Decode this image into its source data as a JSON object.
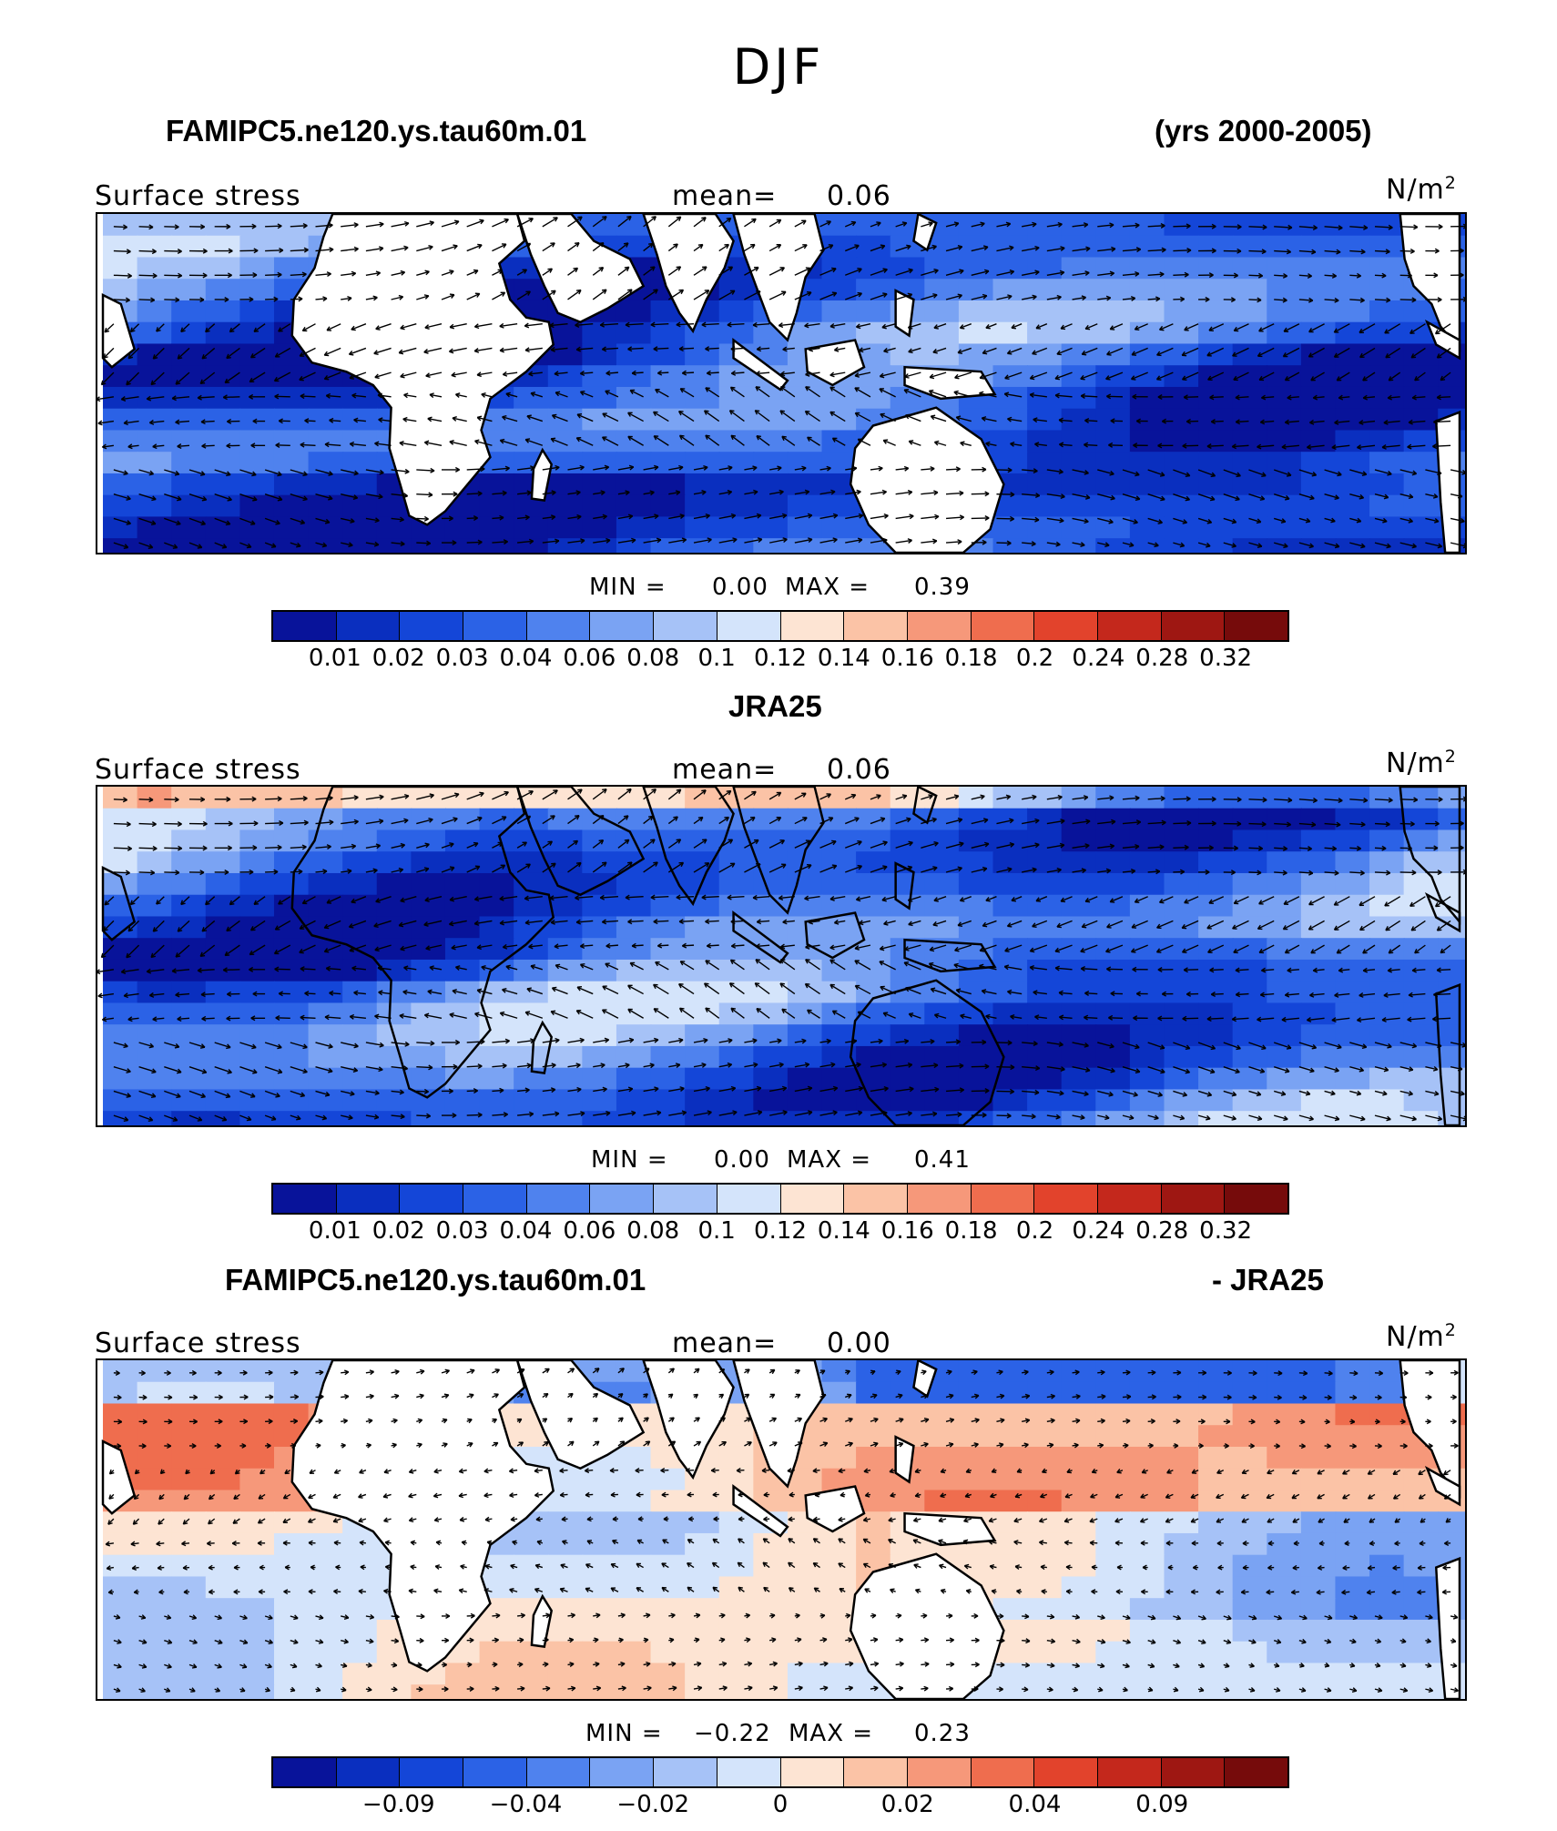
{
  "title": "DJF",
  "panels": [
    {
      "case_left": "FAMIPC5.ne120.ys.tau60m.01",
      "case_right": "(yrs 2000-2005)",
      "variable": "Surface stress",
      "mean_label": "mean=",
      "mean_value": "0.06",
      "units": "N/m",
      "units_sup": "2",
      "minmax_min_label": "MIN =",
      "min_value": "0.00",
      "minmax_max_label": "MAX =",
      "max_value": "0.39",
      "colorbar_ticks": [
        "0.01",
        "0.02",
        "0.03",
        "0.04",
        "0.06",
        "0.08",
        "0.1",
        "0.12",
        "0.14",
        "0.16",
        "0.18",
        "0.2",
        "0.24",
        "0.28",
        "0.32"
      ],
      "field": "model"
    },
    {
      "case_left": "JRA25",
      "case_right": "",
      "variable": "Surface stress",
      "mean_label": "mean=",
      "mean_value": "0.06",
      "units": "N/m",
      "units_sup": "2",
      "minmax_min_label": "MIN =",
      "min_value": "0.00",
      "minmax_max_label": "MAX =",
      "max_value": "0.41",
      "colorbar_ticks": [
        "0.01",
        "0.02",
        "0.03",
        "0.04",
        "0.06",
        "0.08",
        "0.1",
        "0.12",
        "0.14",
        "0.16",
        "0.18",
        "0.2",
        "0.24",
        "0.28",
        "0.32"
      ],
      "field": "obs"
    },
    {
      "case_left": "FAMIPC5.ne120.ys.tau60m.01",
      "case_right": "- JRA25",
      "variable": "Surface stress",
      "mean_label": "mean=",
      "mean_value": "0.00",
      "units": "N/m",
      "units_sup": "2",
      "minmax_min_label": "MIN =",
      "min_value": "−0.22",
      "minmax_max_label": "MAX =",
      "max_value": "0.23",
      "colorbar_ticks": [
        "−0.09",
        "−0.04",
        "−0.02",
        "0",
        "0.02",
        "0.04",
        "0.09"
      ],
      "field": "diff"
    }
  ],
  "colorbar_colors": [
    "#08139a",
    "#0a2fbf",
    "#1446d8",
    "#2b62e6",
    "#4f82ee",
    "#7aa3f3",
    "#a6c2f7",
    "#d4e4fb",
    "#fde4d3",
    "#fbc3a6",
    "#f6987a",
    "#ef6d4e",
    "#e2432c",
    "#c4281c",
    "#9e1712",
    "#760b0b"
  ],
  "land_color": "#ffffff",
  "coast_color": "#000000"
}
